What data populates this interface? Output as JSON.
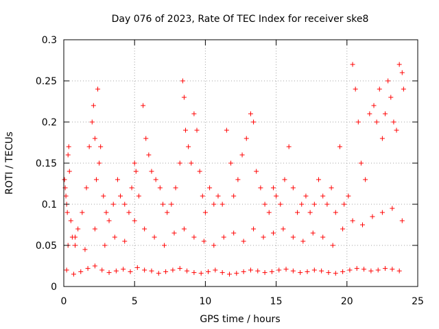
{
  "chart_data": {
    "type": "scatter",
    "title": "Day 076 of 2023, Rate Of TEC Index for receiver ske8",
    "xlabel": "GPS time / hours",
    "ylabel": "ROTI / TECUs",
    "xlim": [
      0,
      25
    ],
    "ylim": [
      0,
      0.3
    ],
    "x_ticks": [
      0,
      5,
      10,
      15,
      20,
      25
    ],
    "y_ticks": [
      0,
      0.05,
      0.1,
      0.15,
      0.2,
      0.25,
      0.3
    ],
    "x_tick_labels": [
      "0",
      "5",
      "10",
      "15",
      "20",
      "25"
    ],
    "y_tick_labels": [
      "0",
      "0.05",
      "0.1",
      "0.15",
      "0.2",
      "0.25",
      "0.3"
    ],
    "grid": true,
    "marker": "+",
    "marker_color": "#ff0000",
    "series": [
      {
        "x": [
          0.05,
          0.1,
          0.15,
          0.2,
          0.25,
          0.3,
          0.35,
          0.4,
          0.5,
          0.6,
          0.8,
          1.0,
          1.3,
          1.6,
          1.8,
          2.0,
          2.1,
          2.2,
          2.3,
          2.4,
          2.5,
          2.6,
          2.8,
          3.0,
          3.2,
          3.5,
          3.8,
          4.0,
          4.3,
          4.6,
          4.8,
          5.0,
          5.1,
          5.3,
          5.6,
          5.8,
          6.0,
          6.2,
          6.5,
          6.8,
          7.0,
          7.3,
          7.6,
          7.9,
          8.2,
          8.4,
          8.5,
          8.6,
          8.8,
          9.0,
          9.2,
          9.4,
          9.6,
          9.8,
          10.0,
          10.3,
          10.6,
          10.9,
          11.2,
          11.5,
          11.8,
          12.0,
          12.3,
          12.6,
          12.9,
          13.2,
          13.4,
          13.6,
          13.9,
          14.2,
          14.5,
          14.8,
          15.0,
          15.3,
          15.6,
          15.9,
          16.2,
          16.5,
          16.8,
          17.1,
          17.4,
          17.7,
          18.0,
          18.3,
          18.6,
          18.9,
          19.2,
          19.5,
          19.8,
          20.1,
          20.4,
          20.6,
          20.8,
          21.0,
          21.3,
          21.6,
          21.9,
          22.1,
          22.3,
          22.5,
          22.7,
          22.9,
          23.1,
          23.3,
          23.5,
          23.7,
          23.9,
          24.0
        ],
        "y": [
          0.13,
          0.12,
          0.11,
          0.1,
          0.09,
          0.16,
          0.17,
          0.14,
          0.08,
          0.06,
          0.05,
          0.07,
          0.09,
          0.12,
          0.17,
          0.2,
          0.22,
          0.18,
          0.13,
          0.24,
          0.15,
          0.17,
          0.11,
          0.09,
          0.08,
          0.1,
          0.13,
          0.11,
          0.1,
          0.09,
          0.12,
          0.15,
          0.14,
          0.11,
          0.22,
          0.18,
          0.16,
          0.14,
          0.13,
          0.12,
          0.1,
          0.09,
          0.1,
          0.12,
          0.15,
          0.25,
          0.23,
          0.19,
          0.17,
          0.15,
          0.21,
          0.19,
          0.14,
          0.11,
          0.09,
          0.12,
          0.1,
          0.11,
          0.1,
          0.19,
          0.15,
          0.11,
          0.13,
          0.16,
          0.18,
          0.21,
          0.2,
          0.14,
          0.12,
          0.1,
          0.09,
          0.12,
          0.11,
          0.1,
          0.13,
          0.17,
          0.12,
          0.09,
          0.1,
          0.11,
          0.09,
          0.1,
          0.13,
          0.11,
          0.1,
          0.12,
          0.09,
          0.17,
          0.1,
          0.11,
          0.27,
          0.24,
          0.2,
          0.15,
          0.13,
          0.21,
          0.22,
          0.2,
          0.24,
          0.18,
          0.21,
          0.25,
          0.23,
          0.2,
          0.19,
          0.27,
          0.26,
          0.24
        ]
      },
      {
        "x": [
          0.3,
          0.8,
          1.5,
          2.2,
          2.9,
          3.6,
          4.3,
          5.0,
          5.7,
          6.4,
          7.1,
          7.8,
          8.5,
          9.2,
          9.9,
          10.6,
          11.3,
          12.0,
          12.7,
          13.4,
          14.1,
          14.8,
          15.5,
          16.2,
          16.9,
          17.6,
          18.3,
          19.0,
          19.7,
          20.4,
          21.1,
          21.8,
          22.5,
          23.2,
          23.9
        ],
        "y": [
          0.05,
          0.06,
          0.045,
          0.07,
          0.05,
          0.06,
          0.055,
          0.08,
          0.07,
          0.06,
          0.05,
          0.065,
          0.07,
          0.06,
          0.055,
          0.05,
          0.06,
          0.065,
          0.055,
          0.07,
          0.06,
          0.065,
          0.07,
          0.06,
          0.055,
          0.065,
          0.06,
          0.05,
          0.07,
          0.08,
          0.075,
          0.085,
          0.09,
          0.095,
          0.08
        ]
      },
      {
        "x": [
          0.2,
          0.7,
          1.2,
          1.7,
          2.2,
          2.7,
          3.2,
          3.7,
          4.2,
          4.7,
          5.2,
          5.7,
          6.2,
          6.7,
          7.2,
          7.7,
          8.2,
          8.7,
          9.2,
          9.7,
          10.2,
          10.7,
          11.2,
          11.7,
          12.2,
          12.7,
          13.2,
          13.7,
          14.2,
          14.7,
          15.2,
          15.7,
          16.2,
          16.7,
          17.2,
          17.7,
          18.2,
          18.7,
          19.2,
          19.7,
          20.2,
          20.7,
          21.2,
          21.7,
          22.2,
          22.7,
          23.2,
          23.7
        ],
        "y": [
          0.02,
          0.015,
          0.018,
          0.022,
          0.025,
          0.02,
          0.017,
          0.019,
          0.021,
          0.018,
          0.023,
          0.02,
          0.019,
          0.016,
          0.018,
          0.02,
          0.022,
          0.019,
          0.017,
          0.016,
          0.018,
          0.02,
          0.017,
          0.015,
          0.016,
          0.018,
          0.02,
          0.019,
          0.017,
          0.018,
          0.02,
          0.021,
          0.019,
          0.017,
          0.018,
          0.02,
          0.019,
          0.017,
          0.016,
          0.018,
          0.02,
          0.022,
          0.021,
          0.019,
          0.02,
          0.022,
          0.021,
          0.019
        ]
      }
    ]
  }
}
